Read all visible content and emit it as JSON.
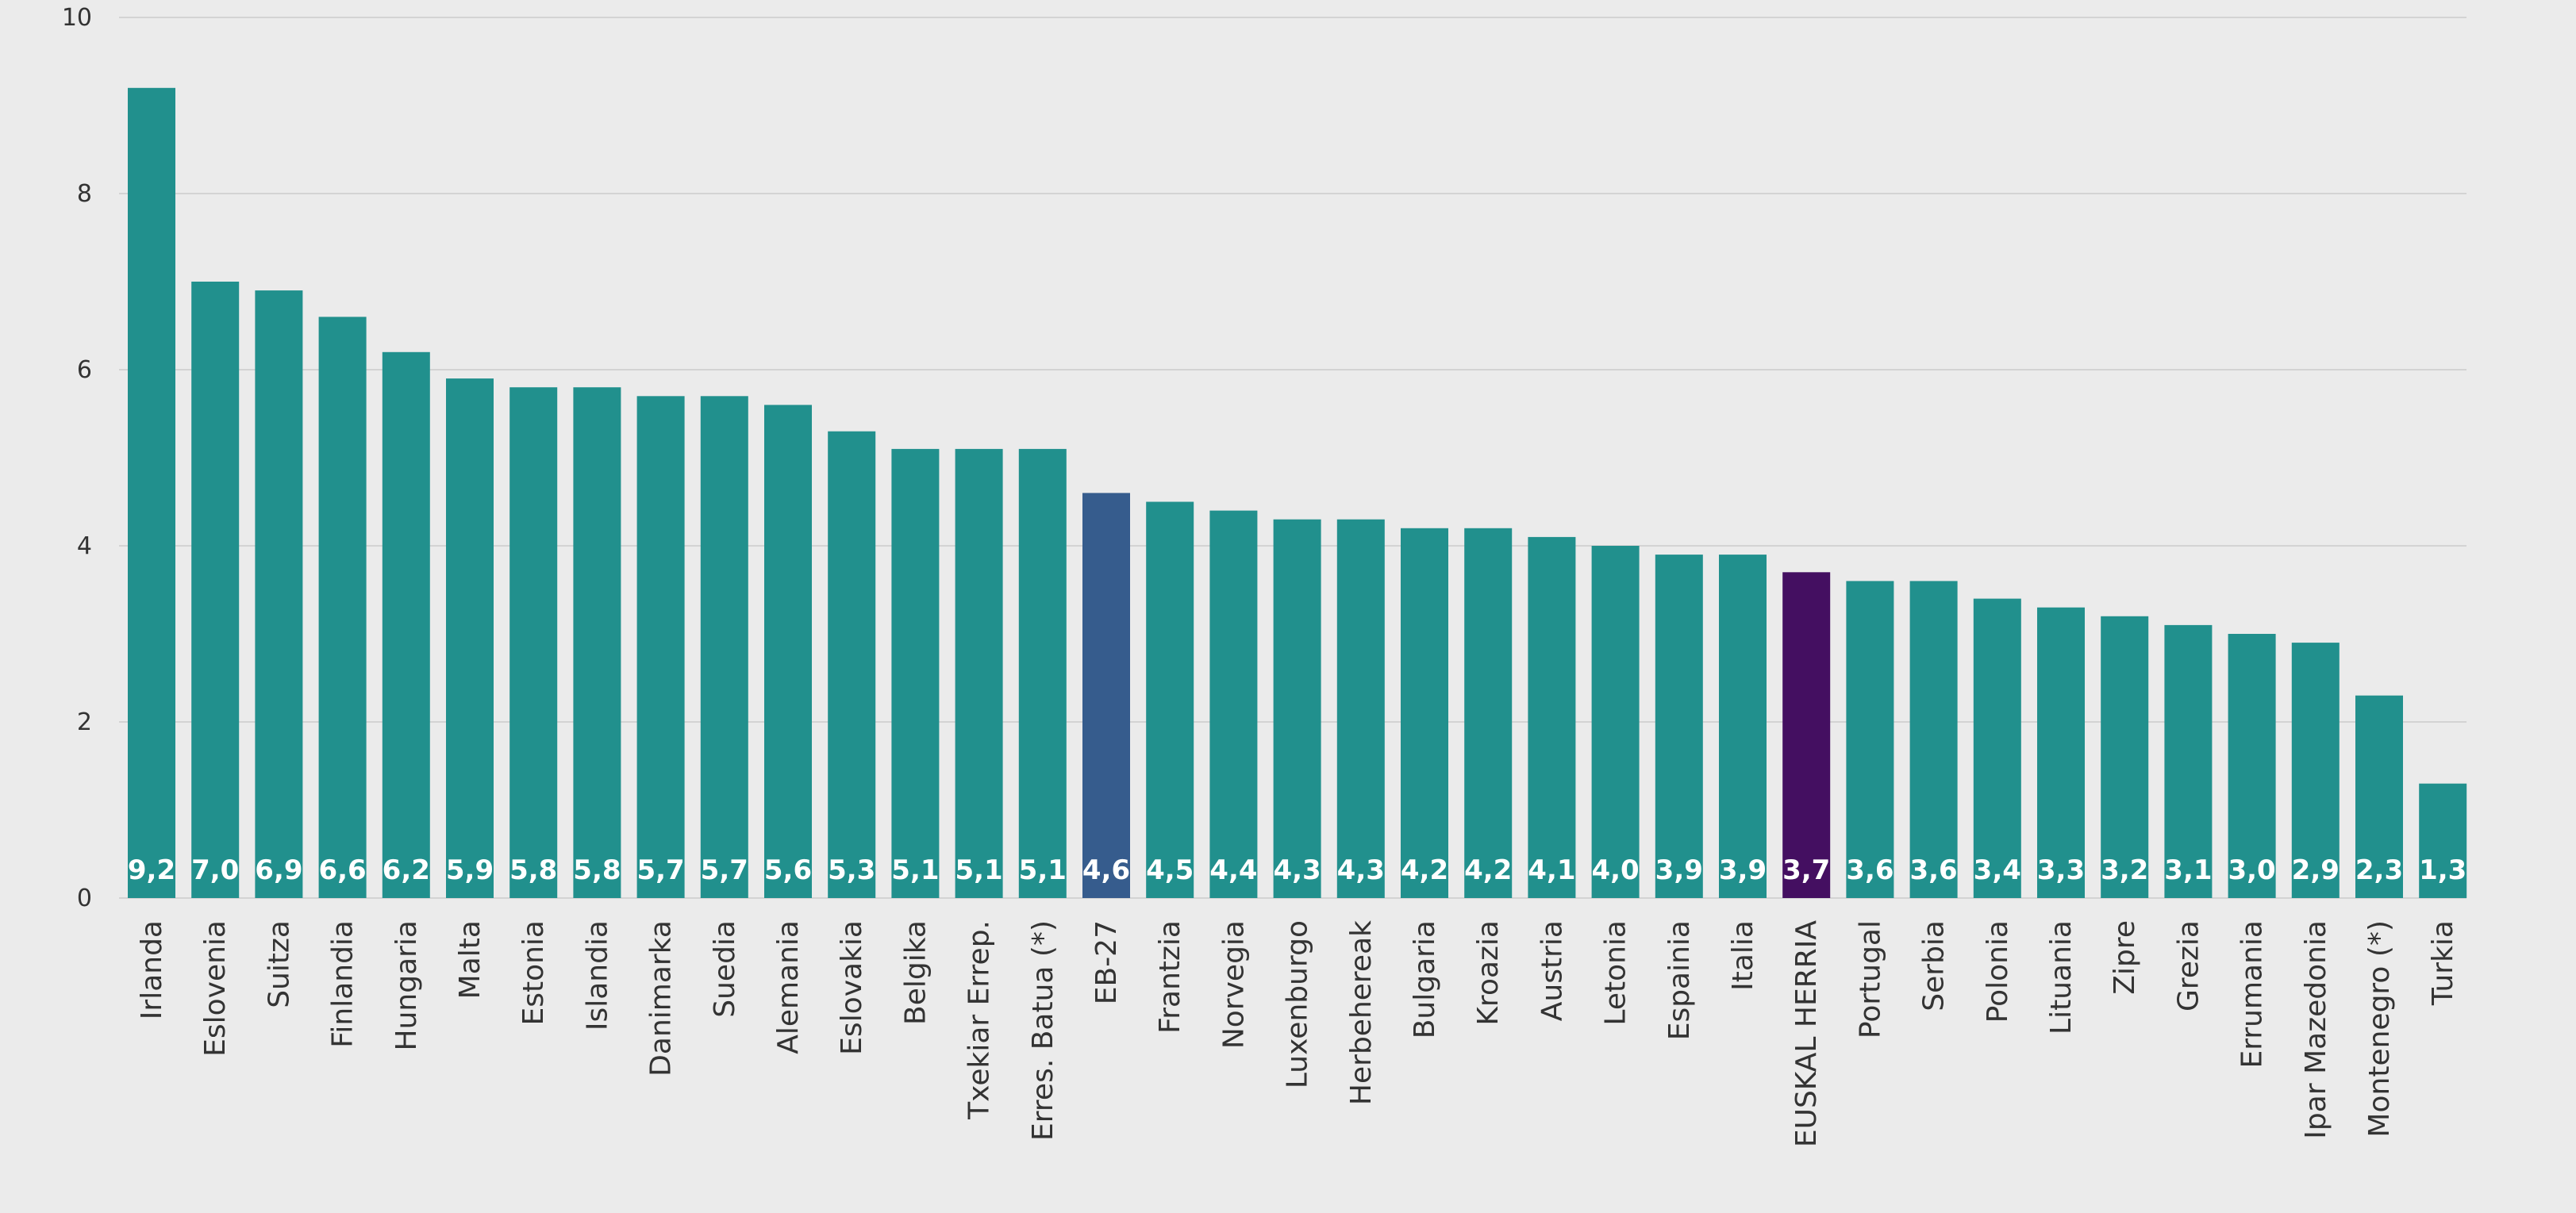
{
  "chart_data": {
    "type": "bar",
    "title": "",
    "xlabel": "",
    "ylabel": "",
    "ylim": [
      0,
      10
    ],
    "yticks": [
      0,
      2,
      4,
      6,
      8,
      10
    ],
    "grid": true,
    "categories": [
      "Irlanda",
      "Eslovenia",
      "Suitza",
      "Finlandia",
      "Hungaria",
      "Malta",
      "Estonia",
      "Islandia",
      "Danimarka",
      "Suedia",
      "Alemania",
      "Eslovakia",
      "Belgika",
      "Txekiar Errep.",
      "Erres. Batua (*)",
      "EB-27",
      "Frantzia",
      "Norvegia",
      "Luxenburgo",
      "Herbehereak",
      "Bulgaria",
      "Kroazia",
      "Austria",
      "Letonia",
      "Espainia",
      "Italia",
      "EUSKAL HERRIA",
      "Portugal",
      "Serbia",
      "Polonia",
      "Lituania",
      "Zipre",
      "Grezia",
      "Errumania",
      "Ipar Mazedonia",
      "Montenegro (*)",
      "Turkia"
    ],
    "values": [
      9.2,
      7.0,
      6.9,
      6.6,
      6.2,
      5.9,
      5.8,
      5.8,
      5.7,
      5.7,
      5.6,
      5.3,
      5.1,
      5.1,
      5.1,
      4.6,
      4.5,
      4.4,
      4.3,
      4.3,
      4.2,
      4.2,
      4.1,
      4.0,
      3.9,
      3.9,
      3.7,
      3.6,
      3.6,
      3.4,
      3.3,
      3.2,
      3.1,
      3.0,
      2.9,
      2.3,
      1.3
    ],
    "value_labels": [
      "9,2",
      "7,0",
      "6,9",
      "6,6",
      "6,2",
      "5,9",
      "5,8",
      "5,8",
      "5,7",
      "5,7",
      "5,6",
      "5,3",
      "5,1",
      "5,1",
      "5,1",
      "4,6",
      "4,5",
      "4,4",
      "4,3",
      "4,3",
      "4,2",
      "4,2",
      "4,1",
      "4,0",
      "3,9",
      "3,9",
      "3,7",
      "3,6",
      "3,6",
      "3,4",
      "3,3",
      "3,2",
      "3,1",
      "3,0",
      "2,9",
      "2,3",
      "1,3"
    ],
    "colors": {
      "default": "#21908d",
      "EB-27": "#365c8d",
      "EUSKAL HERRIA": "#440f61"
    }
  }
}
